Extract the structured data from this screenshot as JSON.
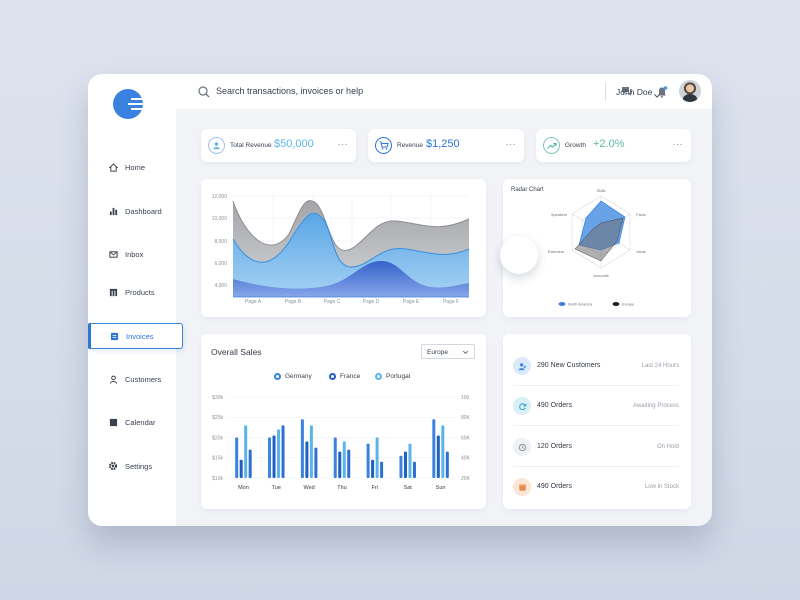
{
  "nav": {
    "items": [
      {
        "label": "Home",
        "icon": "home-icon"
      },
      {
        "label": "Dashboard",
        "icon": "bar-chart-icon"
      },
      {
        "label": "Inbox",
        "icon": "mail-icon"
      },
      {
        "label": "Products",
        "icon": "store-icon"
      },
      {
        "label": "Invoices",
        "icon": "invoice-icon"
      },
      {
        "label": "Customers",
        "icon": "user-icon"
      },
      {
        "label": "Calendar",
        "icon": "calendar-icon"
      },
      {
        "label": "Settings",
        "icon": "gear-icon"
      }
    ],
    "active": "Invoices"
  },
  "topbar": {
    "search_placeholder": "Search transactions, invoices or help",
    "user_name": "John Doe"
  },
  "stats": [
    {
      "label": "Total Revenue",
      "value": "$50,000",
      "color": "#5ab4ea",
      "icon": "user-icon"
    },
    {
      "label": "Revenue",
      "value": "$1,250",
      "color": "#2f74d8",
      "icon": "cart-icon"
    },
    {
      "label": "Growth",
      "value": "+2.0%",
      "color": "#5bb8a6",
      "icon": "trend-up-icon"
    }
  ],
  "stat_more": "···",
  "area_chart": {
    "y_ticks": [
      "12,000",
      "10,000",
      "8,000",
      "6,000",
      "4,000"
    ],
    "x_labels": [
      "Page A",
      "Page B",
      "Page C",
      "Page D",
      "Page E",
      "Page F"
    ]
  },
  "radar": {
    "title": "Radar Chart",
    "axes": [
      "Skills",
      "Facts",
      "Ideas",
      "Accounts",
      "Extensive",
      "Speakers"
    ],
    "legend": [
      {
        "name": "North America",
        "color": "#3b82e0"
      },
      {
        "name": "Europe",
        "color": "#222222"
      }
    ]
  },
  "sales": {
    "title": "Overall Sales",
    "region": "Europe",
    "legend": [
      {
        "name": "Germany",
        "color": "#3b82e0"
      },
      {
        "name": "France",
        "color": "#1f5fc0"
      },
      {
        "name": "Portugal",
        "color": "#5ab4ea"
      }
    ],
    "y_left": [
      "$30k",
      "$25k",
      "$20k",
      "$15k",
      "$10k"
    ],
    "y_right": [
      "100",
      "80K",
      "60K",
      "40K",
      "20K"
    ]
  },
  "chart_data": {
    "type": "bar",
    "title": "Overall Sales",
    "categories": [
      "Mon",
      "Tue",
      "Wed",
      "Thu",
      "Fri",
      "Sat",
      "Sun"
    ],
    "series": [
      {
        "name": "Germany",
        "values": [
          20,
          20,
          24.5,
          20,
          18.5,
          15.5,
          24.5
        ]
      },
      {
        "name": "France",
        "values": [
          14.5,
          20.5,
          19,
          16.5,
          14.5,
          16.5,
          20.5
        ]
      },
      {
        "name": "Portugal",
        "values": [
          23,
          22,
          23,
          19,
          20,
          18.5,
          23
        ]
      },
      {
        "name": "",
        "values": [
          17,
          23,
          17.5,
          17,
          14,
          14,
          16.5
        ]
      }
    ],
    "ylim": [
      10,
      30
    ]
  },
  "activity": [
    {
      "title": "290 New Customers",
      "status": "Last 24 Hours",
      "icon": "add-user-icon",
      "bg": "#dbe9fb",
      "fg": "#3b82e0"
    },
    {
      "title": "490 Orders",
      "status": "Awaiting Process",
      "icon": "refresh-icon",
      "bg": "#d9f0f6",
      "fg": "#35a7c9"
    },
    {
      "title": "120 Orders",
      "status": "On Hold",
      "icon": "clock-icon",
      "bg": "#eef0f3",
      "fg": "#8c939d"
    },
    {
      "title": "490 Orders",
      "status": "Low in Stock",
      "icon": "box-icon",
      "bg": "#fbe6d6",
      "fg": "#e4894a"
    }
  ]
}
